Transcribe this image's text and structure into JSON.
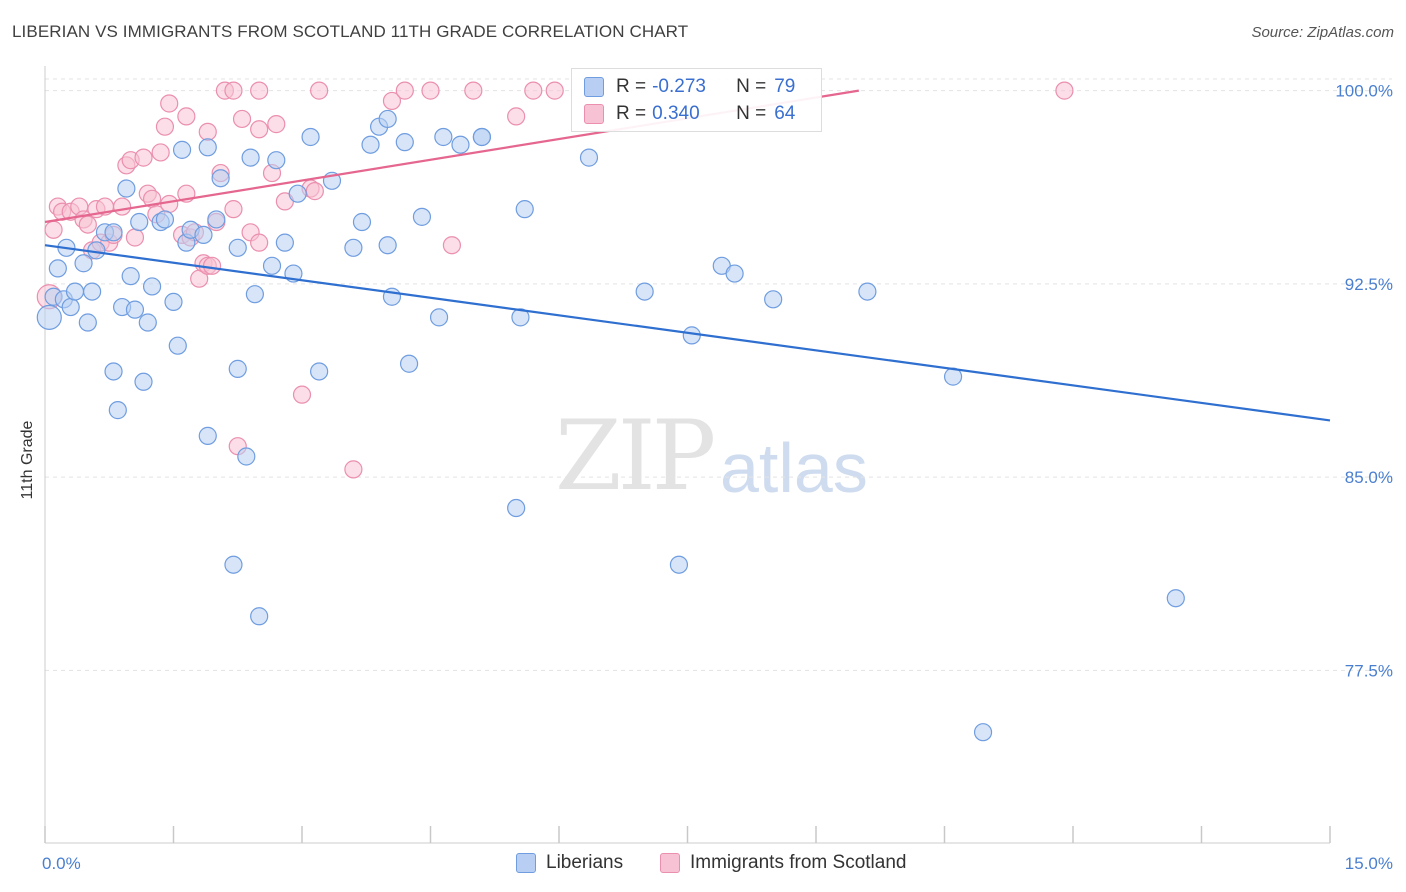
{
  "title": "LIBERIAN VS IMMIGRANTS FROM SCOTLAND 11TH GRADE CORRELATION CHART",
  "source": "Source: ZipAtlas.com",
  "watermark": {
    "zip": "ZIP",
    "atlas": "atlas"
  },
  "legend": {
    "series": [
      {
        "r_label": "R =",
        "r_value": "-0.273",
        "n_label": "N =",
        "n_value": "79"
      },
      {
        "r_label": "R =",
        "r_value": "0.340",
        "n_label": "N =",
        "n_value": "64"
      }
    ]
  },
  "bottom_legend": [
    "Liberians",
    "Immigrants from Scotland"
  ],
  "colors": {
    "blue_fill": "#b8cff3",
    "blue_stroke": "#6f9de0",
    "blue_line": "#2f6fd0",
    "pink_fill": "#f7c2d3",
    "pink_stroke": "#eb8fae",
    "pink_line": "#e5668f",
    "grid": "#e3e3e3",
    "axis_tick": "#4a7fd0"
  },
  "chart_data": {
    "type": "scatter",
    "title": "LIBERIAN VS IMMIGRANTS FROM SCOTLAND 11TH GRADE CORRELATION CHART",
    "xlabel": "",
    "ylabel": "11th Grade",
    "xlim": [
      0,
      15
    ],
    "ylim": [
      70.8,
      100.8
    ],
    "x_tick_labels": [
      "0.0%",
      "15.0%"
    ],
    "y_ticks": [
      77.5,
      85.0,
      92.5,
      100.0
    ],
    "y_tick_labels": [
      "77.5%",
      "85.0%",
      "92.5%",
      "100.0%"
    ],
    "grid": true,
    "legend_position": "top-center",
    "series": [
      {
        "name": "Liberians",
        "trend": {
          "x": [
            0.0,
            15.0
          ],
          "y": [
            94.0,
            87.2
          ]
        },
        "points": [
          [
            0.05,
            91.2
          ],
          [
            0.1,
            92.0
          ],
          [
            0.15,
            93.1
          ],
          [
            0.22,
            91.9
          ],
          [
            0.25,
            93.9
          ],
          [
            0.3,
            91.6
          ],
          [
            0.35,
            92.2
          ],
          [
            0.45,
            93.3
          ],
          [
            0.5,
            91.0
          ],
          [
            0.55,
            92.2
          ],
          [
            0.6,
            93.8
          ],
          [
            0.7,
            94.5
          ],
          [
            0.8,
            94.5
          ],
          [
            0.8,
            89.1
          ],
          [
            0.85,
            87.6
          ],
          [
            0.9,
            91.6
          ],
          [
            0.95,
            96.2
          ],
          [
            1.0,
            92.8
          ],
          [
            1.05,
            91.5
          ],
          [
            1.1,
            94.9
          ],
          [
            1.15,
            88.7
          ],
          [
            1.2,
            91.0
          ],
          [
            1.25,
            92.4
          ],
          [
            1.35,
            94.9
          ],
          [
            1.4,
            95.0
          ],
          [
            1.5,
            91.8
          ],
          [
            1.55,
            90.1
          ],
          [
            1.6,
            97.7
          ],
          [
            1.65,
            94.1
          ],
          [
            1.7,
            94.6
          ],
          [
            1.85,
            94.4
          ],
          [
            1.9,
            86.6
          ],
          [
            1.9,
            97.8
          ],
          [
            2.0,
            95.0
          ],
          [
            2.05,
            96.6
          ],
          [
            2.2,
            81.6
          ],
          [
            2.25,
            93.9
          ],
          [
            2.25,
            89.2
          ],
          [
            2.35,
            85.8
          ],
          [
            2.4,
            97.4
          ],
          [
            2.45,
            92.1
          ],
          [
            2.5,
            79.6
          ],
          [
            2.65,
            93.2
          ],
          [
            2.7,
            97.3
          ],
          [
            2.8,
            94.1
          ],
          [
            2.9,
            92.9
          ],
          [
            2.95,
            96.0
          ],
          [
            3.1,
            98.2
          ],
          [
            3.2,
            89.1
          ],
          [
            3.35,
            96.5
          ],
          [
            3.6,
            93.9
          ],
          [
            3.7,
            94.9
          ],
          [
            3.8,
            97.9
          ],
          [
            3.9,
            98.6
          ],
          [
            4.0,
            94.0
          ],
          [
            4.0,
            98.9
          ],
          [
            4.05,
            92.0
          ],
          [
            4.2,
            98.0
          ],
          [
            4.25,
            89.4
          ],
          [
            4.4,
            95.1
          ],
          [
            4.6,
            91.2
          ],
          [
            4.65,
            98.2
          ],
          [
            4.85,
            97.9
          ],
          [
            5.1,
            98.2
          ],
          [
            5.1,
            98.2
          ],
          [
            5.5,
            83.8
          ],
          [
            5.55,
            91.2
          ],
          [
            5.6,
            95.4
          ],
          [
            6.35,
            97.4
          ],
          [
            7.0,
            92.2
          ],
          [
            7.4,
            81.6
          ],
          [
            7.55,
            90.5
          ],
          [
            7.9,
            93.2
          ],
          [
            8.05,
            92.9
          ],
          [
            8.5,
            91.9
          ],
          [
            9.6,
            92.2
          ],
          [
            10.6,
            88.9
          ],
          [
            10.95,
            75.1
          ],
          [
            13.2,
            80.3
          ]
        ]
      },
      {
        "name": "Immigrants from Scotland",
        "trend": {
          "x": [
            0.0,
            9.5
          ],
          "y": [
            94.9,
            100.0
          ]
        },
        "points": [
          [
            0.05,
            92.0
          ],
          [
            0.1,
            94.6
          ],
          [
            0.15,
            95.5
          ],
          [
            0.2,
            95.3
          ],
          [
            0.3,
            95.3
          ],
          [
            0.4,
            95.5
          ],
          [
            0.45,
            95.0
          ],
          [
            0.5,
            94.8
          ],
          [
            0.55,
            93.8
          ],
          [
            0.6,
            95.4
          ],
          [
            0.65,
            94.1
          ],
          [
            0.7,
            95.5
          ],
          [
            0.75,
            94.1
          ],
          [
            0.8,
            94.4
          ],
          [
            0.9,
            95.5
          ],
          [
            0.95,
            97.1
          ],
          [
            1.0,
            97.3
          ],
          [
            1.05,
            94.3
          ],
          [
            1.15,
            97.4
          ],
          [
            1.2,
            96.0
          ],
          [
            1.25,
            95.8
          ],
          [
            1.3,
            95.2
          ],
          [
            1.35,
            97.6
          ],
          [
            1.4,
            98.6
          ],
          [
            1.45,
            95.6
          ],
          [
            1.45,
            99.5
          ],
          [
            1.6,
            94.4
          ],
          [
            1.65,
            99.0
          ],
          [
            1.65,
            96.0
          ],
          [
            1.7,
            94.3
          ],
          [
            1.75,
            94.5
          ],
          [
            1.8,
            92.7
          ],
          [
            1.85,
            93.3
          ],
          [
            1.9,
            93.2
          ],
          [
            1.9,
            98.4
          ],
          [
            1.95,
            93.2
          ],
          [
            2.0,
            94.9
          ],
          [
            2.05,
            96.8
          ],
          [
            2.1,
            100.0
          ],
          [
            2.2,
            100.0
          ],
          [
            2.2,
            95.4
          ],
          [
            2.25,
            86.2
          ],
          [
            2.3,
            98.9
          ],
          [
            2.4,
            94.5
          ],
          [
            2.5,
            94.1
          ],
          [
            2.5,
            98.5
          ],
          [
            2.5,
            100.0
          ],
          [
            2.65,
            96.8
          ],
          [
            2.7,
            98.7
          ],
          [
            2.8,
            95.7
          ],
          [
            3.0,
            88.2
          ],
          [
            3.1,
            96.2
          ],
          [
            3.15,
            96.1
          ],
          [
            3.2,
            100.0
          ],
          [
            3.6,
            85.3
          ],
          [
            4.05,
            99.6
          ],
          [
            4.2,
            100.0
          ],
          [
            4.5,
            100.0
          ],
          [
            4.75,
            94.0
          ],
          [
            5.0,
            100.0
          ],
          [
            5.5,
            99.0
          ],
          [
            5.7,
            100.0
          ],
          [
            5.95,
            100.0
          ],
          [
            11.9,
            100.0
          ]
        ]
      }
    ]
  }
}
